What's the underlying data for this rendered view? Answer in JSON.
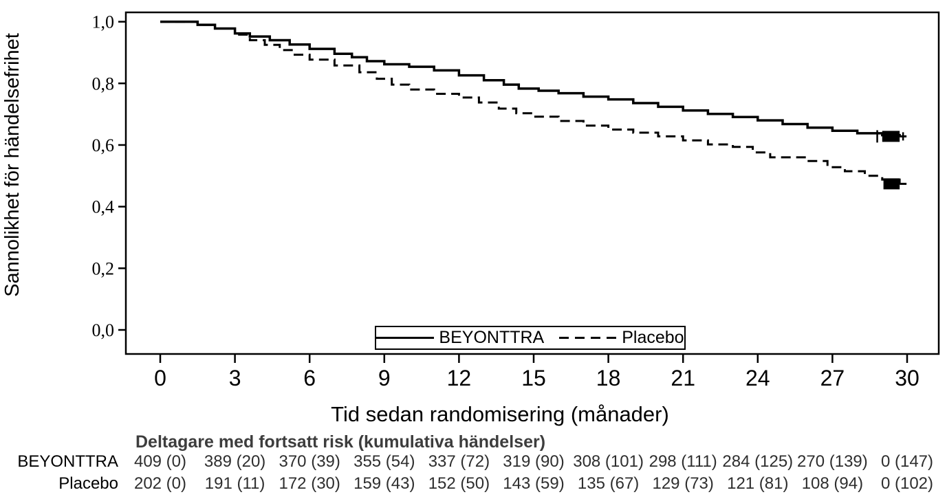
{
  "chart": {
    "y_axis": {
      "title": "Sannolikhet för händelsefrihet",
      "tick_labels": [
        "1,0",
        "0,8",
        "0,6",
        "0,4",
        "0,2",
        "0,0"
      ],
      "tick_values": [
        1.0,
        0.8,
        0.6,
        0.4,
        0.2,
        0.0
      ]
    },
    "x_axis": {
      "title": "Tid sedan randomisering (månader)",
      "tick_values": [
        0,
        3,
        6,
        9,
        12,
        15,
        18,
        21,
        24,
        27,
        30
      ]
    },
    "legend": {
      "items": [
        {
          "label": "BEYONTTRA",
          "line_style": "solid"
        },
        {
          "label": "Placebo",
          "line_style": "dashed"
        }
      ]
    }
  },
  "chart_data": {
    "type": "line",
    "subtype": "kaplan_meier_step",
    "title": "",
    "xlabel": "Tid sedan randomisering (månader)",
    "ylabel": "Sannolikhet för händelsefrihet",
    "xlim": [
      -1.4,
      31.3
    ],
    "ylim": [
      -0.08,
      1.03
    ],
    "x_ticks": [
      0,
      3,
      6,
      9,
      12,
      15,
      18,
      21,
      24,
      27,
      30
    ],
    "y_ticks": [
      0.0,
      0.2,
      0.4,
      0.6,
      0.8,
      1.0
    ],
    "grid": false,
    "legend_position": "bottom-center-inside",
    "series": [
      {
        "name": "BEYONTTRA",
        "line_style": "solid",
        "color": "#000000",
        "points": [
          [
            0,
            1.0
          ],
          [
            0.9,
            1.0
          ],
          [
            1.5,
            0.99
          ],
          [
            2.2,
            0.978
          ],
          [
            3,
            0.962
          ],
          [
            3.6,
            0.952
          ],
          [
            4.4,
            0.94
          ],
          [
            5.2,
            0.926
          ],
          [
            6,
            0.912
          ],
          [
            7,
            0.896
          ],
          [
            7.7,
            0.885
          ],
          [
            8.3,
            0.872
          ],
          [
            9,
            0.862
          ],
          [
            10,
            0.854
          ],
          [
            11,
            0.842
          ],
          [
            12,
            0.826
          ],
          [
            13,
            0.81
          ],
          [
            13.8,
            0.796
          ],
          [
            14.4,
            0.783
          ],
          [
            15.2,
            0.776
          ],
          [
            16,
            0.768
          ],
          [
            17,
            0.757
          ],
          [
            18,
            0.748
          ],
          [
            19,
            0.736
          ],
          [
            20,
            0.724
          ],
          [
            21,
            0.712
          ],
          [
            22,
            0.701
          ],
          [
            23,
            0.691
          ],
          [
            24,
            0.68
          ],
          [
            25,
            0.668
          ],
          [
            26,
            0.656
          ],
          [
            27,
            0.646
          ],
          [
            28,
            0.638
          ],
          [
            29,
            0.632
          ],
          [
            29.7,
            0.628
          ]
        ],
        "censor_tick_x": [
          28.8
        ],
        "terminal_censor_block": {
          "x_from": 29.0,
          "x_to": 29.7,
          "y": 0.628
        }
      },
      {
        "name": "Placebo",
        "line_style": "dashed",
        "color": "#000000",
        "points": [
          [
            0,
            1.0
          ],
          [
            0.9,
            1.0
          ],
          [
            1.5,
            0.99
          ],
          [
            2.2,
            0.978
          ],
          [
            3,
            0.958
          ],
          [
            3.6,
            0.94
          ],
          [
            4.2,
            0.925
          ],
          [
            4.8,
            0.908
          ],
          [
            5.4,
            0.893
          ],
          [
            6,
            0.877
          ],
          [
            7,
            0.858
          ],
          [
            8,
            0.836
          ],
          [
            8.7,
            0.815
          ],
          [
            9.3,
            0.796
          ],
          [
            10,
            0.78
          ],
          [
            11,
            0.766
          ],
          [
            12,
            0.754
          ],
          [
            12.8,
            0.738
          ],
          [
            13.6,
            0.718
          ],
          [
            14.3,
            0.703
          ],
          [
            15,
            0.692
          ],
          [
            16,
            0.678
          ],
          [
            17,
            0.663
          ],
          [
            18,
            0.65
          ],
          [
            19,
            0.64
          ],
          [
            20,
            0.628
          ],
          [
            21,
            0.615
          ],
          [
            22,
            0.602
          ],
          [
            23,
            0.594
          ],
          [
            23.8,
            0.576
          ],
          [
            24.5,
            0.56
          ],
          [
            26,
            0.548
          ],
          [
            26.8,
            0.528
          ],
          [
            27.5,
            0.515
          ],
          [
            28.3,
            0.5
          ],
          [
            29,
            0.488
          ],
          [
            29.7,
            0.474
          ]
        ],
        "censor_tick_x": [],
        "terminal_censor_block": {
          "x_from": 29.05,
          "x_to": 29.7,
          "y": 0.474
        }
      }
    ]
  },
  "risk_table": {
    "title": "Deltagare med fortsatt risk (kumulativa händelser)",
    "columns_months": [
      0,
      3,
      6,
      9,
      12,
      15,
      18,
      21,
      24,
      27,
      30
    ],
    "rows": [
      {
        "label": "BEYONTTRA",
        "values": [
          "409 (0)",
          "389 (20)",
          "370 (39)",
          "355 (54)",
          "337 (72)",
          "319 (90)",
          "308 (101)",
          "298 (111)",
          "284 (125)",
          "270 (139)",
          "0 (147)"
        ]
      },
      {
        "label": "Placebo",
        "values": [
          "202 (0)",
          "191 (11)",
          "172 (30)",
          "159 (43)",
          "152 (50)",
          "143 (59)",
          "135 (67)",
          "129 (73)",
          "121 (81)",
          "108 (94)",
          "0 (102)"
        ]
      }
    ]
  },
  "colors": {
    "curve": "#000000",
    "axis": "#000000",
    "risk_table_title": "#3d3d3d",
    "risk_table_values": "#2e2e2e",
    "background": "#ffffff"
  }
}
